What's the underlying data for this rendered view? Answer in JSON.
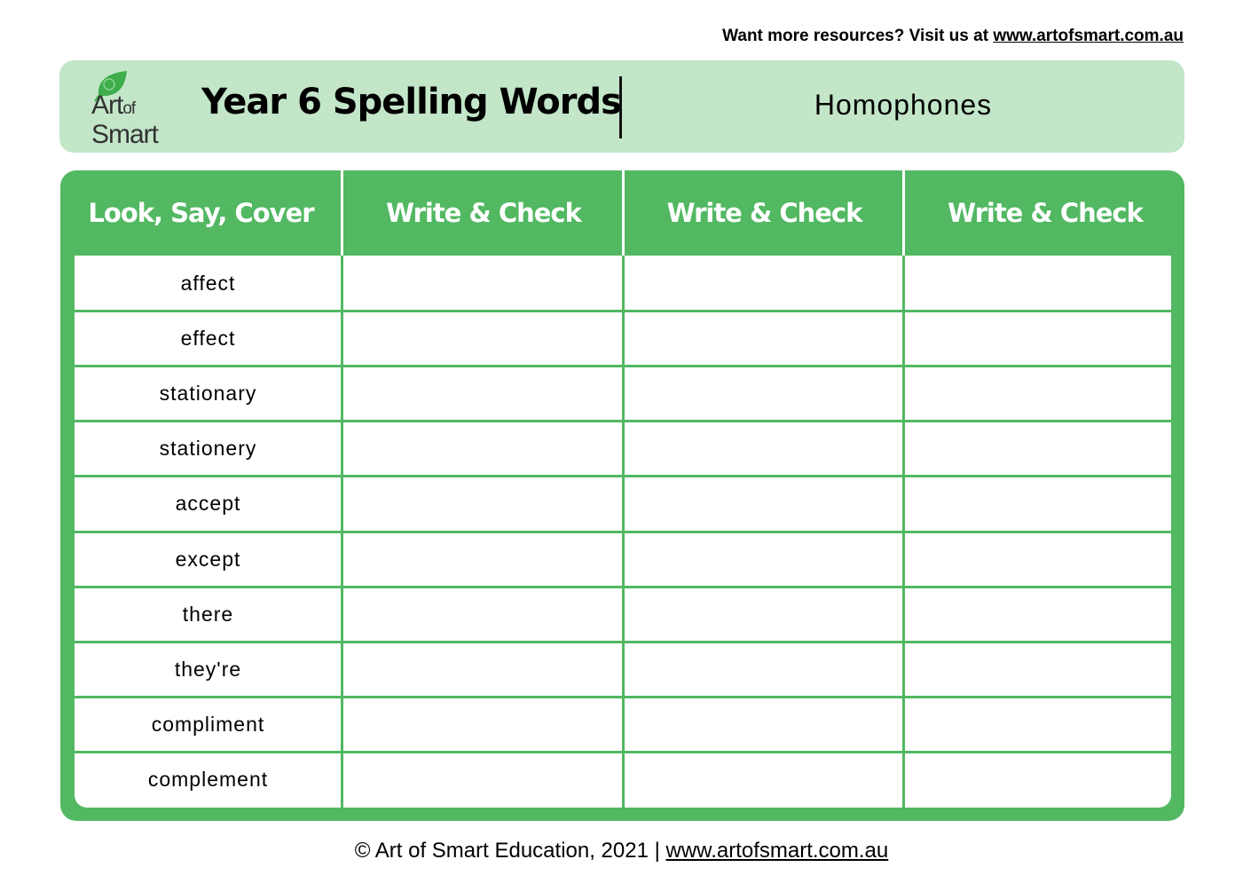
{
  "top_banner": {
    "text": "Want more resources? Visit us at ",
    "link": "www.artofsmart.com.au"
  },
  "header": {
    "logo": {
      "line1": "Art",
      "of": "of",
      "line2": "Smart"
    },
    "title": "Year 6 Spelling Words",
    "subtitle": "Homophones"
  },
  "colors": {
    "header_bg": "#C3E6C9",
    "table_green": "#52B862"
  },
  "table": {
    "columns": [
      "Look, Say, Cover",
      "Write & Check",
      "Write & Check",
      "Write & Check"
    ],
    "words": [
      "affect",
      "effect",
      "stationary",
      "stationery",
      "accept",
      "except",
      "there",
      "they're",
      "compliment",
      "complement"
    ]
  },
  "footer": {
    "text": "© Art of Smart Education, 2021 | ",
    "link": "www.artofsmart.com.au"
  }
}
